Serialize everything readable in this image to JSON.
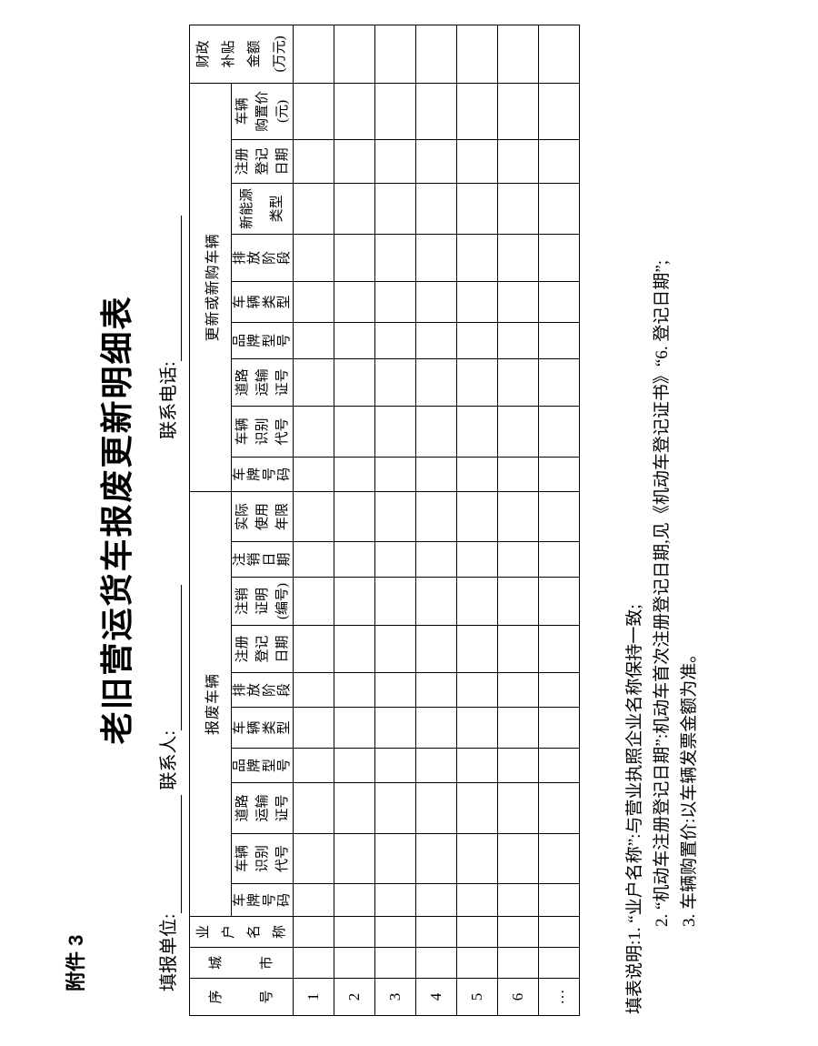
{
  "page": {
    "attachment": "附件 3",
    "title": "老旧营运货车报废更新明细表",
    "info_fields": [
      {
        "label": "填报单位:",
        "value": ""
      },
      {
        "label": "联系人:",
        "value": ""
      },
      {
        "label": "联系电话:",
        "value": ""
      }
    ]
  },
  "table": {
    "base_columns": [
      "序\n号",
      "城\n市",
      "业\n户\n名\n称"
    ],
    "groups": [
      {
        "label": "报废车辆",
        "columns": [
          "车\n牌\n号\n码",
          "车辆\n识别\n代号",
          "道路\n运输\n证号",
          "品\n牌\n型\n号",
          "车\n辆\n类\n型",
          "排\n放\n阶\n段",
          "注册\n登记\n日期",
          "注销\n证明\n(编号)",
          "注\n销\n日\n期",
          "实际\n使用\n年限"
        ]
      },
      {
        "label": "更新或新购车辆",
        "columns": [
          "车\n牌\n号\n码",
          "车辆\n识别\n代号",
          "道路\n运输\n证号",
          "品\n牌\n型\n号",
          "车\n辆\n类\n型",
          "排\n放\n阶\n段",
          "新能源\n类型",
          "注册\n登记\n日期",
          "车辆\n购置价\n(元)"
        ]
      }
    ],
    "subsidy_column": "财政\n补贴\n金额\n(万元)",
    "rows": [
      "1",
      "2",
      "3",
      "4",
      "5",
      "6",
      "…"
    ]
  },
  "notes": [
    "填表说明:1. “业户名称”:与营业执照企业名称保持一致;",
    "2. “机动车注册登记日期”:机动车首次注册登记日期,见《机动车登记证书》“6. 登记日期”;",
    "3. 车辆购置价:以车辆发票金额为准。"
  ]
}
